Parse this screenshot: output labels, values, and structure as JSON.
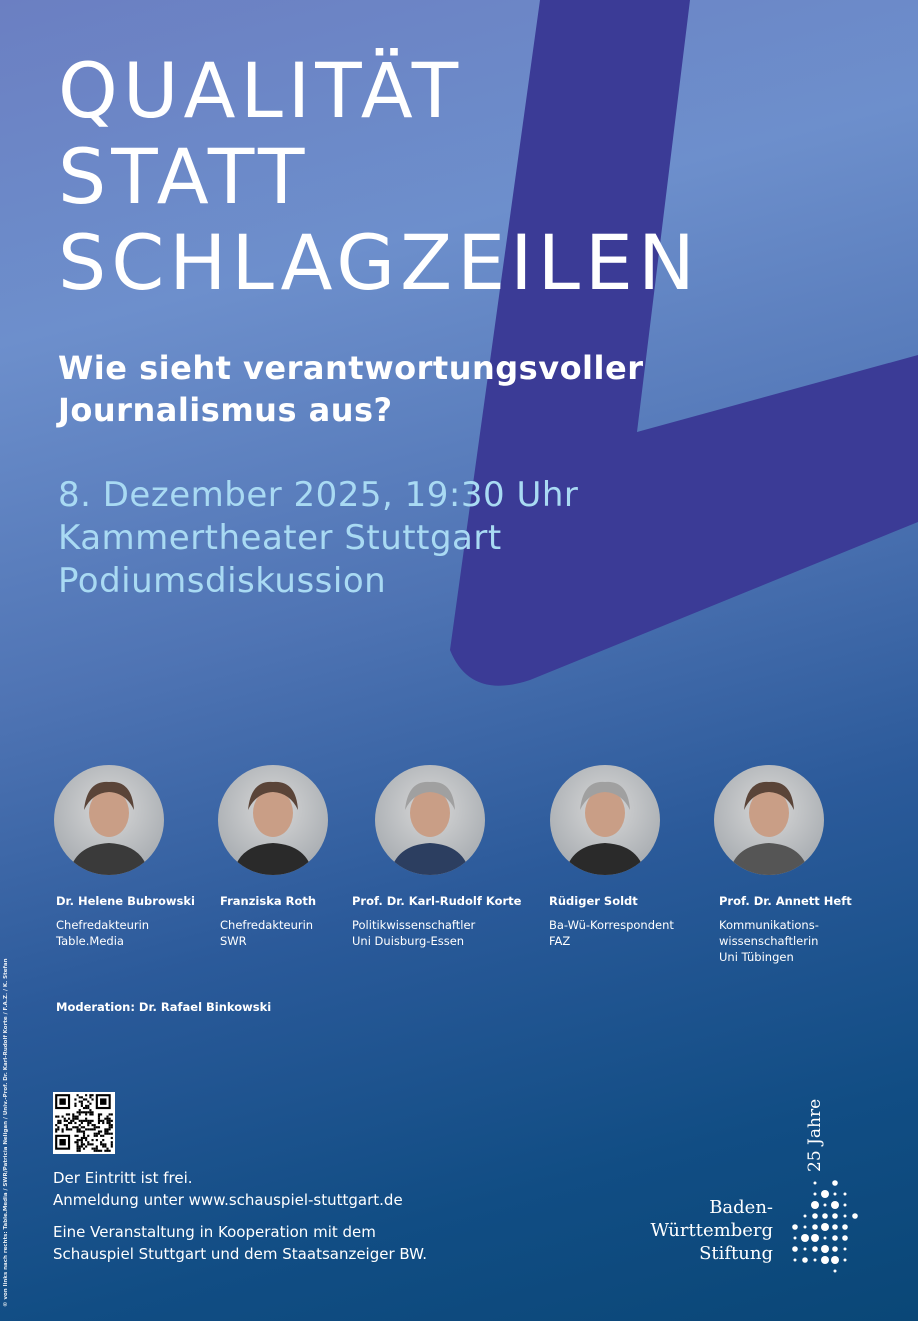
{
  "headline": [
    "QUALITÄT",
    "STATT",
    "SCHLAGZEILEN"
  ],
  "subtitle": [
    "Wie sieht verantwortungsvoller",
    "Journalismus aus?"
  ],
  "event": {
    "datetime": "8. Dezember 2025, 19:30 Uhr",
    "venue": "Kammertheater Stuttgart",
    "format": "Podiumsdiskussion"
  },
  "speakers": [
    {
      "name": "Dr. Helene Bubrowski",
      "role": [
        "Chefredakteurin",
        "Table.Media"
      ]
    },
    {
      "name": "Franziska Roth",
      "role": [
        "Chefredakteurin",
        "SWR"
      ]
    },
    {
      "name": "Prof. Dr. Karl-Rudolf Korte",
      "role": [
        "Politikwissenschaftler",
        "Uni Duisburg-Essen"
      ]
    },
    {
      "name": "Rüdiger Soldt",
      "role": [
        "Ba-Wü-Korrespondent",
        "FAZ"
      ]
    },
    {
      "name": "Prof. Dr. Annett Heft",
      "role": [
        "Kommunikations-",
        "wissenschaftlerin",
        "Uni Tübingen"
      ]
    }
  ],
  "moderation": "Moderation: Dr. Rafael Binkowski",
  "info": {
    "entry": "Der Eintritt ist frei.",
    "registration": "Anmeldung unter www.schauspiel-stuttgart.de",
    "cooperation_1": "Eine Veranstaltung in Kooperation mit dem",
    "cooperation_2": "Schauspiel Stuttgart und dem Staatsanzeiger BW."
  },
  "photo_credit": "© von links nach rechts: Table.Media / SWR/Patricia Neligan / Univ.-Prof. Dr. Karl-Rudolf Korte / F.A.Z. / K. Stefan",
  "logo": {
    "lines": [
      "Baden-",
      "Württemberg",
      "Stiftung"
    ],
    "anniversary": [
      "25",
      "Jahre"
    ]
  },
  "colors": {
    "band": "#3b3b96",
    "accent_text": "#a9daf3",
    "background_top": "#6b7fc2",
    "background_bottom": "#0a4777"
  }
}
